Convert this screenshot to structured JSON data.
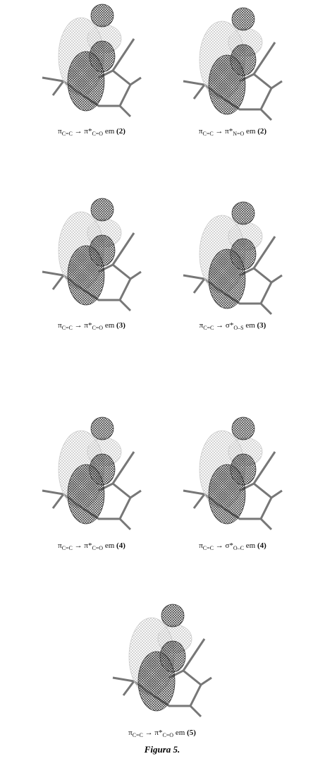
{
  "panels": [
    {
      "caption": {
        "from": "π",
        "from_sub": "C=C",
        "arrow": "→",
        "to": "π*",
        "to_sub": "C=O",
        "em": "em",
        "compound": "(2)"
      }
    },
    {
      "caption": {
        "from": "π",
        "from_sub": "C=C",
        "arrow": "→",
        "to": "π*",
        "to_sub": "N=O",
        "em": "em",
        "compound": "(2)"
      }
    },
    {
      "caption": {
        "from": "π",
        "from_sub": "C=C",
        "arrow": "→",
        "to": "π*",
        "to_sub": "C=O",
        "em": "em",
        "compound": "(3)"
      }
    },
    {
      "caption": {
        "from": "π",
        "from_sub": "C=C",
        "arrow": "→",
        "to": "σ*",
        "to_sub": "O–S",
        "em": "em",
        "compound": "(3)"
      }
    },
    {
      "caption": {
        "from": "π",
        "from_sub": "C=C",
        "arrow": "→",
        "to": "π*",
        "to_sub": "C=O",
        "em": "em",
        "compound": "(4)"
      }
    },
    {
      "caption": {
        "from": "π",
        "from_sub": "C=C",
        "arrow": "→",
        "to": "σ*",
        "to_sub": "O–C",
        "em": "em",
        "compound": "(4)"
      }
    },
    {
      "caption": {
        "from": "π",
        "from_sub": "C=C",
        "arrow": "→",
        "to": "π*",
        "to_sub": "C=O",
        "em": "em",
        "compound": "(5)"
      }
    }
  ],
  "figure_label": "Figura 5."
}
